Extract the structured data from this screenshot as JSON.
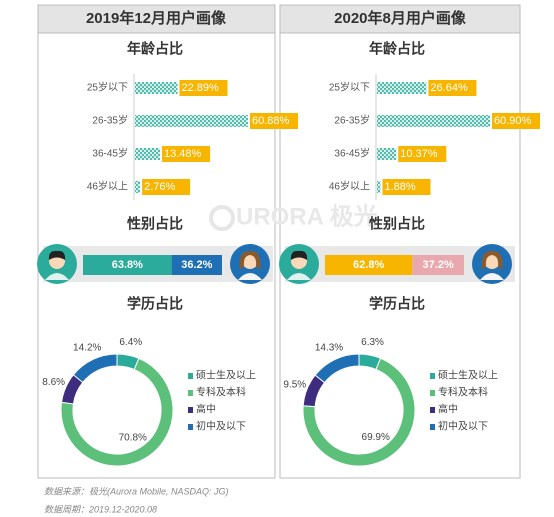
{
  "panel_titles": [
    "2019年12月用户画像",
    "2020年8月用户画像"
  ],
  "chart_data": [
    {
      "type": "hbar",
      "title": "年龄占比",
      "categories": [
        "25岁以下",
        "26-35岁",
        "36-45岁",
        "46岁以上"
      ],
      "values": [
        22.89,
        60.88,
        13.48,
        2.76
      ],
      "value_labels": [
        "22.89%",
        "60.88%",
        "13.48%",
        "2.76%"
      ],
      "color": "#2bab9b",
      "label_color": "#f7b500"
    },
    {
      "type": "stacked-hbar",
      "title": "性别占比",
      "values": [
        63.8,
        36.2
      ],
      "value_labels": [
        "63.8%",
        "36.2%"
      ],
      "colors": [
        "#2bab9b",
        "#1f6fb5"
      ]
    },
    {
      "type": "donut",
      "title": "学历占比",
      "categories": [
        "硕士生及以上",
        "专科及本科",
        "高中",
        "初中及以下"
      ],
      "values": [
        6.4,
        70.8,
        8.6,
        14.2
      ],
      "value_labels": [
        "6.4%",
        "70.8%",
        "8.6%",
        "14.2%"
      ],
      "colors": [
        "#2bab9b",
        "#5cc07a",
        "#3e2c7f",
        "#1f6fb5"
      ]
    },
    {
      "type": "hbar",
      "title": "年龄占比",
      "categories": [
        "25岁以下",
        "26-35岁",
        "36-45岁",
        "46岁以上"
      ],
      "values": [
        26.64,
        60.9,
        10.37,
        1.88
      ],
      "value_labels": [
        "26.64%",
        "60.90%",
        "10.37%",
        "1.88%"
      ],
      "color": "#2bab9b",
      "label_color": "#f7b500"
    },
    {
      "type": "stacked-hbar",
      "title": "性别占比",
      "values": [
        62.8,
        37.2
      ],
      "value_labels": [
        "62.8%",
        "37.2%"
      ],
      "colors": [
        "#f7b500",
        "#e8a8ae"
      ]
    },
    {
      "type": "donut",
      "title": "学历占比",
      "categories": [
        "硕士生及以上",
        "专科及本科",
        "高中",
        "初中及以下"
      ],
      "values": [
        6.3,
        69.9,
        9.5,
        14.3
      ],
      "value_labels": [
        "6.3%",
        "69.9%",
        "9.5%",
        "14.3%"
      ],
      "colors": [
        "#2bab9b",
        "#5cc07a",
        "#3e2c7f",
        "#1f6fb5"
      ]
    }
  ],
  "watermark": "URORA 极光",
  "footnotes": [
    "数据来源：极光(Aurora Mobile, NASDAQ: JG)",
    "数据周期：2019.12-2020.08"
  ]
}
